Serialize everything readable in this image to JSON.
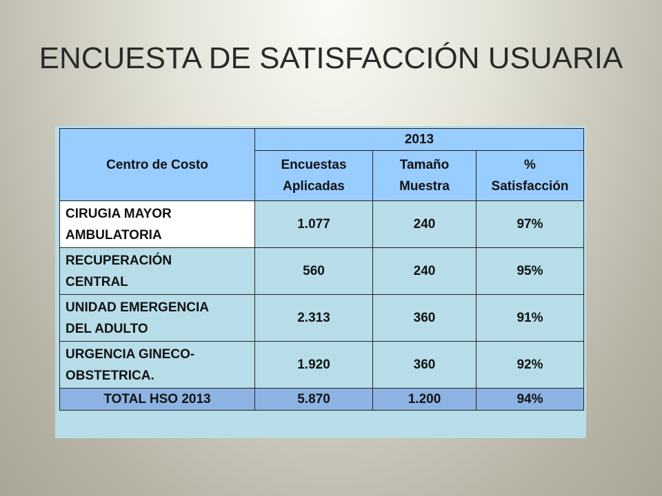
{
  "title": "ENCUESTA DE SATISFACCIÓN USUARIA",
  "table": {
    "header": {
      "cost_center": "Centro de Costo",
      "year": "2013",
      "columns": [
        [
          "Encuestas",
          "Aplicadas"
        ],
        [
          "Tamaño",
          "Muestra"
        ],
        [
          "%",
          "Satisfacción"
        ]
      ]
    },
    "rows": [
      {
        "label": [
          "CIRUGIA MAYOR",
          "AMBULATORIA"
        ],
        "cells": [
          "1.077",
          "240",
          "97%"
        ]
      },
      {
        "label": [
          "RECUPERACIÓN",
          "CENTRAL"
        ],
        "cells": [
          "560",
          "240",
          "95%"
        ]
      },
      {
        "label": [
          "UNIDAD EMERGENCIA",
          "DEL ADULTO"
        ],
        "cells": [
          "2.313",
          "360",
          "91%"
        ]
      },
      {
        "label": [
          "URGENCIA GINECO-",
          "OBSTETRICA."
        ],
        "cells": [
          "1.920",
          "360",
          "92%"
        ]
      }
    ],
    "total": {
      "label": "TOTAL HSO 2013",
      "cells": [
        "5.870",
        "1.200",
        "94%"
      ]
    }
  }
}
